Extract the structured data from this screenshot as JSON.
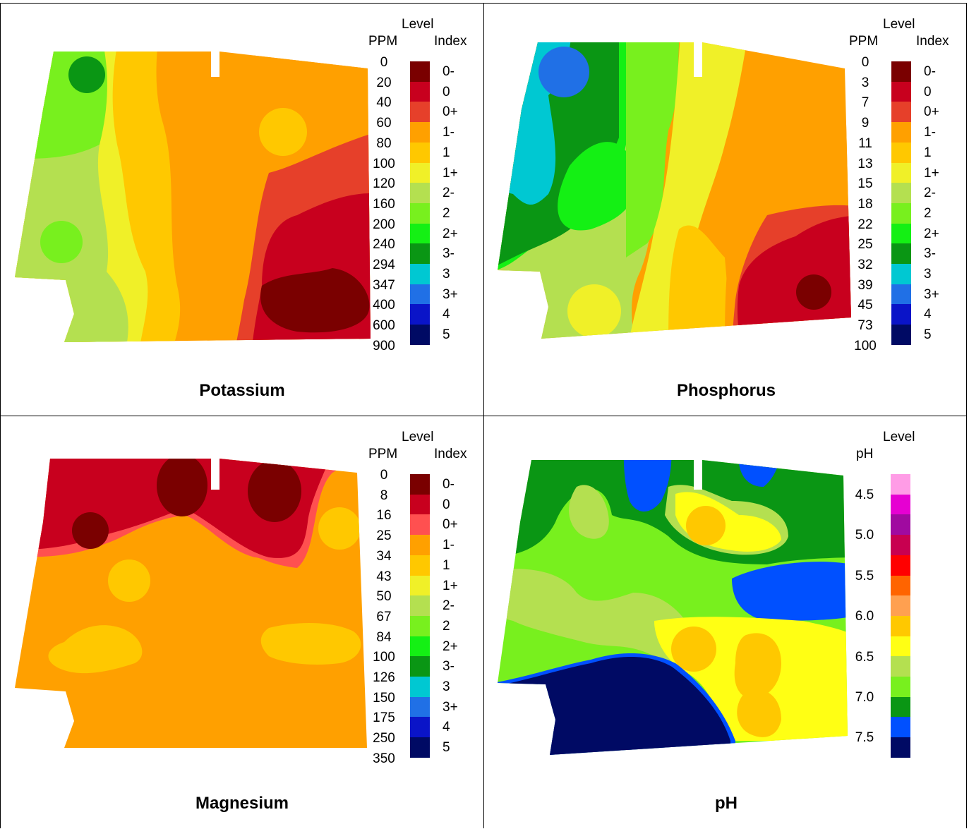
{
  "palette": {
    "maroon": "#7a0000",
    "red": "#c8001e",
    "orange_red": "#e6402a",
    "orange": "#ffa000",
    "gold": "#ffc800",
    "yellow": "#f0f028",
    "yellow_green": "#b4e050",
    "lime": "#78f01e",
    "green_bright": "#14f014",
    "green_dark": "#0a9614",
    "cyan": "#00c8d2",
    "blue_light": "#2070e6",
    "blue": "#0a14c8",
    "navy": "#000a64",
    "salmon": "#ff5050",
    "pink": "#ff9ce6",
    "magenta": "#e600d2",
    "purple": "#a00aa0",
    "crimson": "#c80050",
    "red_pure": "#ff0000",
    "orange_dark": "#ff6400",
    "peach": "#ffa050",
    "yellow_pure": "#ffff14",
    "blue_mid": "#0050ff"
  },
  "panels": [
    {
      "id": "potassium",
      "title": "Potassium",
      "legend": {
        "level_header": "Level",
        "value_header": "PPM",
        "index_header": "Index",
        "values": [
          "0",
          "20",
          "40",
          "60",
          "80",
          "100",
          "120",
          "160",
          "200",
          "240",
          "294",
          "347",
          "400",
          "600",
          "900"
        ],
        "indices": [
          "0-",
          "0",
          "0+",
          "1-",
          "1",
          "1+",
          "2-",
          "2",
          "2+",
          "3-",
          "3",
          "3+",
          "4",
          "5"
        ],
        "colors": [
          "#7a0000",
          "#c8001e",
          "#e6402a",
          "#ffa000",
          "#ffc800",
          "#f0f028",
          "#b4e050",
          "#78f01e",
          "#14f014",
          "#0a9614",
          "#00c8d2",
          "#2070e6",
          "#0a14c8",
          "#000a64"
        ]
      }
    },
    {
      "id": "phosphorus",
      "title": "Phosphorus",
      "legend": {
        "level_header": "Level",
        "value_header": "PPM",
        "index_header": "Index",
        "values": [
          "0",
          "3",
          "7",
          "9",
          "11",
          "13",
          "15",
          "18",
          "22",
          "25",
          "32",
          "39",
          "45",
          "73",
          "100"
        ],
        "indices": [
          "0-",
          "0",
          "0+",
          "1-",
          "1",
          "1+",
          "2-",
          "2",
          "2+",
          "3-",
          "3",
          "3+",
          "4",
          "5"
        ],
        "colors": [
          "#7a0000",
          "#c8001e",
          "#e6402a",
          "#ffa000",
          "#ffc800",
          "#f0f028",
          "#b4e050",
          "#78f01e",
          "#14f014",
          "#0a9614",
          "#00c8d2",
          "#2070e6",
          "#0a14c8",
          "#000a64"
        ]
      }
    },
    {
      "id": "magnesium",
      "title": "Magnesium",
      "legend": {
        "level_header": "Level",
        "value_header": "PPM",
        "index_header": "Index",
        "values": [
          "0",
          "8",
          "16",
          "25",
          "34",
          "43",
          "50",
          "67",
          "84",
          "100",
          "126",
          "150",
          "175",
          "250",
          "350"
        ],
        "indices": [
          "0-",
          "0",
          "0+",
          "1-",
          "1",
          "1+",
          "2-",
          "2",
          "2+",
          "3-",
          "3",
          "3+",
          "4",
          "5"
        ],
        "colors": [
          "#7a0000",
          "#c8001e",
          "#ff5050",
          "#ffa000",
          "#ffc800",
          "#f0f028",
          "#b4e050",
          "#78f01e",
          "#14f014",
          "#0a9614",
          "#00c8d2",
          "#2070e6",
          "#0a14c8",
          "#000a64"
        ]
      }
    },
    {
      "id": "ph",
      "title": "pH",
      "legend": {
        "level_header": "Level",
        "value_header": "pH",
        "index_header": "",
        "values": [
          "4.5",
          "5.0",
          "5.5",
          "6.0",
          "6.5",
          "7.0",
          "7.5"
        ],
        "indices": [],
        "colors": [
          "#ff9ce6",
          "#e600d2",
          "#a00aa0",
          "#c80050",
          "#ff0000",
          "#ff6400",
          "#ffa050",
          "#ffc800",
          "#ffff14",
          "#b4e050",
          "#78f01e",
          "#0a9614",
          "#0050ff",
          "#000a64"
        ]
      }
    }
  ]
}
